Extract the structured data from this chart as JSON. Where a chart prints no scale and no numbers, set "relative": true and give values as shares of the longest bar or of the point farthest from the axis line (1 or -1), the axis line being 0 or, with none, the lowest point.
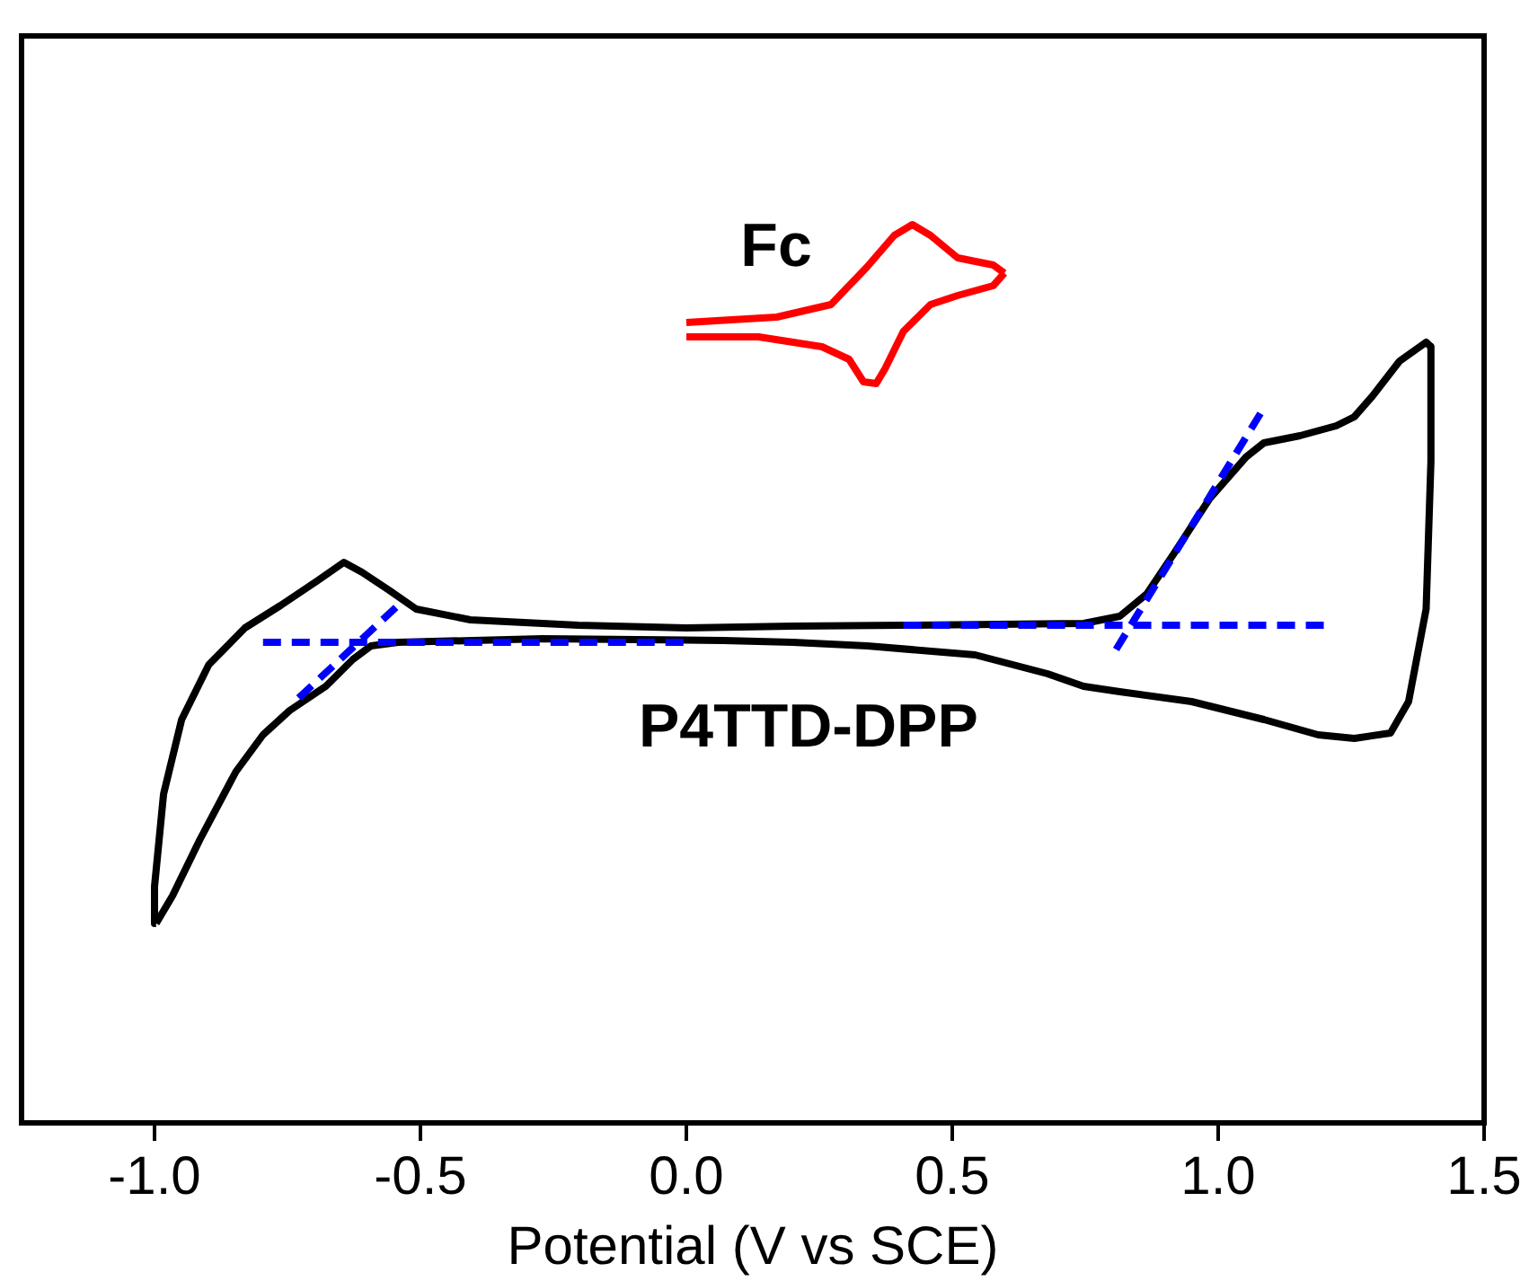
{
  "chart_data": {
    "type": "line",
    "relative": true,
    "xlabel": "Potential (V vs SCE)",
    "xlim": [
      -1.25,
      1.5
    ],
    "xticks": [
      {
        "value": -1,
        "label": "-1.0"
      },
      -0.5,
      {
        "value": 0,
        "label": "0.0"
      },
      0.5,
      {
        "value": 1,
        "label": "1.0"
      },
      1.5
    ],
    "series": [
      {
        "color": "#0000ff",
        "line_style": "dashed",
        "x": [
          -0.796,
          0.0
        ],
        "values": [
          0.535,
          0.535
        ]
      },
      {
        "color": "#0000ff",
        "line_style": "dashed",
        "x": [
          -0.729,
          -0.535
        ],
        "values": [
          0.473,
          0.58
        ]
      },
      {
        "color": "#0000ff",
        "line_style": "dashed",
        "x": [
          0.408,
          1.205
        ],
        "values": [
          0.554,
          0.554
        ]
      },
      {
        "color": "#0000ff",
        "line_style": "dashed",
        "x": [
          0.808,
          1.086
        ],
        "values": [
          0.527,
          0.796
        ]
      },
      {
        "color": "#000000",
        "x": [
          -0.997,
          -1.0,
          -0.983,
          -0.949,
          -0.898,
          -0.83,
          -0.763,
          -0.695,
          -0.644,
          -0.61,
          -0.559,
          -0.508,
          -0.406,
          -0.203,
          0.0,
          0.2,
          0.408,
          0.747,
          0.815,
          0.866,
          0.917,
          0.984,
          1.052,
          1.086,
          1.154,
          1.222,
          1.256,
          1.29,
          1.341,
          1.391,
          1.4
        ],
        "values": [
          0.222,
          0.263,
          0.366,
          0.449,
          0.51,
          0.551,
          0.576,
          0.603,
          0.624,
          0.613,
          0.593,
          0.572,
          0.56,
          0.554,
          0.551,
          0.553,
          0.554,
          0.556,
          0.564,
          0.589,
          0.634,
          0.695,
          0.741,
          0.757,
          0.765,
          0.776,
          0.786,
          0.809,
          0.848,
          0.869,
          0.864
        ]
      },
      {
        "name": "P4TTD-DPP",
        "color": "#000000",
        "x": [
          1.4,
          1.4,
          1.391,
          1.358,
          1.324,
          1.256,
          1.188,
          1.086,
          0.95,
          0.815,
          0.747,
          0.679,
          0.543,
          0.34,
          0.2,
          0.069,
          -0.271,
          -0.542,
          -0.593,
          -0.627,
          -0.678,
          -0.746,
          -0.796,
          -0.847,
          -0.915,
          -0.966,
          -0.997
        ],
        "values": [
          0.864,
          0.736,
          0.572,
          0.469,
          0.434,
          0.428,
          0.432,
          0.449,
          0.469,
          0.48,
          0.486,
          0.5,
          0.521,
          0.531,
          0.535,
          0.537,
          0.539,
          0.535,
          0.531,
          0.516,
          0.486,
          0.459,
          0.432,
          0.391,
          0.315,
          0.253,
          0.222
        ]
      },
      {
        "name": "Fc",
        "color": "#ff0000",
        "x": [
          0.0,
          0.17,
          0.272,
          0.34,
          0.391,
          0.425,
          0.459,
          0.51,
          0.577,
          0.598
        ],
        "values": [
          0.891,
          0.897,
          0.911,
          0.953,
          0.988,
          1,
          0.988,
          0.963,
          0.955,
          0.946
        ]
      },
      {
        "color": "#ff0000",
        "x": [
          0.598,
          0.577,
          0.51,
          0.459,
          0.408,
          0.374,
          0.357,
          0.333,
          0.306,
          0.255,
          0.136,
          0.0
        ],
        "values": [
          0.946,
          0.932,
          0.921,
          0.911,
          0.881,
          0.84,
          0.823,
          0.825,
          0.85,
          0.864,
          0.875,
          0.875
        ]
      }
    ]
  }
}
